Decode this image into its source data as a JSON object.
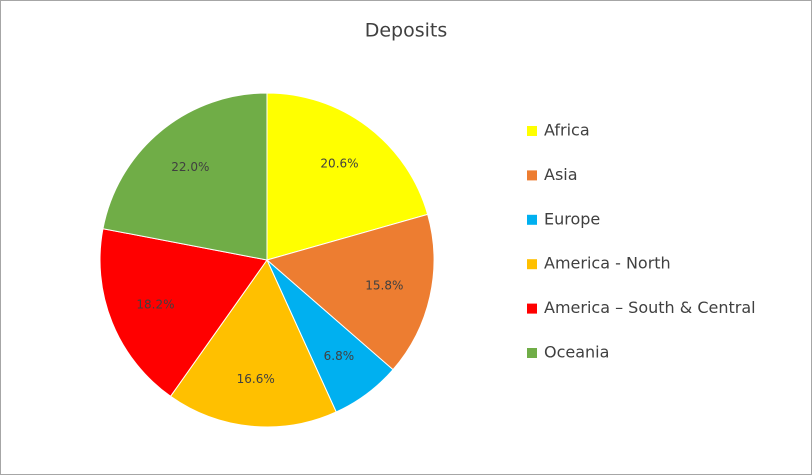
{
  "chart_data": {
    "type": "pie",
    "title": "Deposits",
    "categories": [
      "Africa",
      "Asia",
      "Europe",
      "America - North",
      "America – South & Central",
      "Oceania"
    ],
    "values": [
      20.6,
      15.8,
      6.8,
      16.6,
      18.2,
      22.0
    ],
    "value_labels": [
      "20.6%",
      "15.8%",
      "6.8%",
      "16.6%",
      "18.2%",
      "22.0%"
    ],
    "colors": [
      "#ffff00",
      "#ed7d31",
      "#00b0f0",
      "#ffc000",
      "#ff0000",
      "#70ad47"
    ],
    "legend": "right"
  }
}
